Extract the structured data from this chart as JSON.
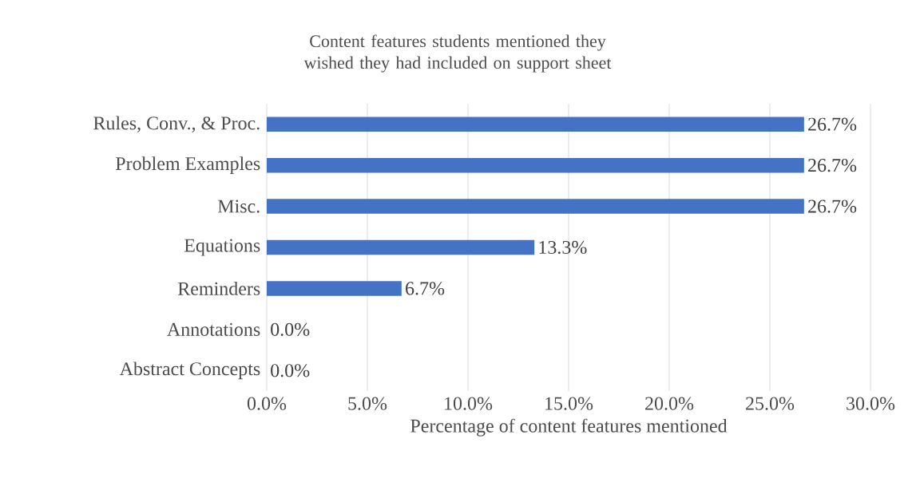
{
  "chart_data": {
    "type": "bar",
    "orientation": "horizontal",
    "title": "Content features students mentioned they wished they had included on support sheet",
    "xlabel": "Percentage of content features mentioned",
    "categories": [
      "Rules, Conv., & Proc.",
      "Problem Examples",
      "Misc.",
      "Equations",
      "Reminders",
      "Annotations",
      "Abstract Concepts"
    ],
    "values": [
      26.7,
      26.7,
      26.7,
      13.3,
      6.7,
      0,
      0
    ],
    "value_labels": [
      "26.7%",
      "26.7%",
      "26.7%",
      "13.3%",
      "6.7%",
      "0.0%",
      "0.0%"
    ],
    "color": "#4472c4",
    "xlim": [
      0,
      30
    ],
    "xticks": [
      {
        "value": 0,
        "label": "0.0%"
      },
      {
        "value": 5,
        "label": "5.0%"
      },
      {
        "value": 10,
        "label": "10.0%"
      },
      {
        "value": 15,
        "label": "15.0%"
      },
      {
        "value": 20,
        "label": "20.0%"
      },
      {
        "value": 25,
        "label": "25.0%"
      },
      {
        "value": 30,
        "label": "30.0%"
      }
    ],
    "grid": "x"
  }
}
